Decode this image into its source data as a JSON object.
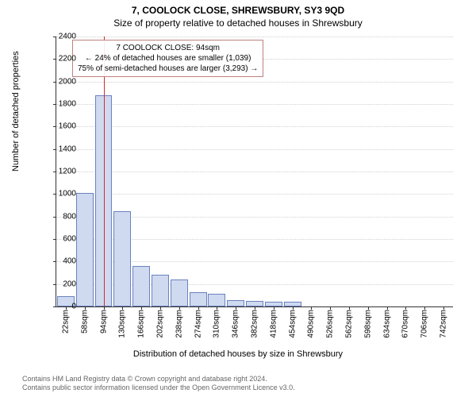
{
  "title_main": "7, COOLOCK CLOSE, SHREWSBURY, SY3 9QD",
  "title_sub": "Size of property relative to detached houses in Shrewsbury",
  "ylabel": "Number of detached properties",
  "xlabel": "Distribution of detached houses by size in Shrewsbury",
  "chart": {
    "ylim": [
      0,
      2400
    ],
    "ytick_step": 200,
    "xticks": [
      "22sqm",
      "58sqm",
      "94sqm",
      "130sqm",
      "166sqm",
      "202sqm",
      "238sqm",
      "274sqm",
      "310sqm",
      "346sqm",
      "382sqm",
      "418sqm",
      "454sqm",
      "490sqm",
      "526sqm",
      "562sqm",
      "598sqm",
      "634sqm",
      "670sqm",
      "706sqm",
      "742sqm"
    ],
    "bar_fill": "#cfd9ef",
    "bar_stroke": "#6a82c0",
    "grid_color": "#d0d0d0",
    "axis_color": "#333333",
    "background": "#ffffff",
    "values": [
      90,
      1010,
      1880,
      850,
      360,
      280,
      240,
      130,
      110,
      60,
      50,
      40,
      40,
      0,
      0,
      0,
      0,
      0,
      0,
      0,
      0
    ],
    "refline_x_index": 2,
    "refline_color": "#d03030",
    "label_fontsize": 10,
    "title_fontsize": 12
  },
  "annotation": {
    "line1": "7 COOLOCK CLOSE: 94sqm",
    "line2": "← 24% of detached houses are smaller (1,039)",
    "line3": "75% of semi-detached houses are larger (3,293) →",
    "border_color": "#c08080"
  },
  "footer": {
    "line1": "Contains HM Land Registry data © Crown copyright and database right 2024.",
    "line2": "Contains public sector information licensed under the Open Government Licence v3.0."
  }
}
